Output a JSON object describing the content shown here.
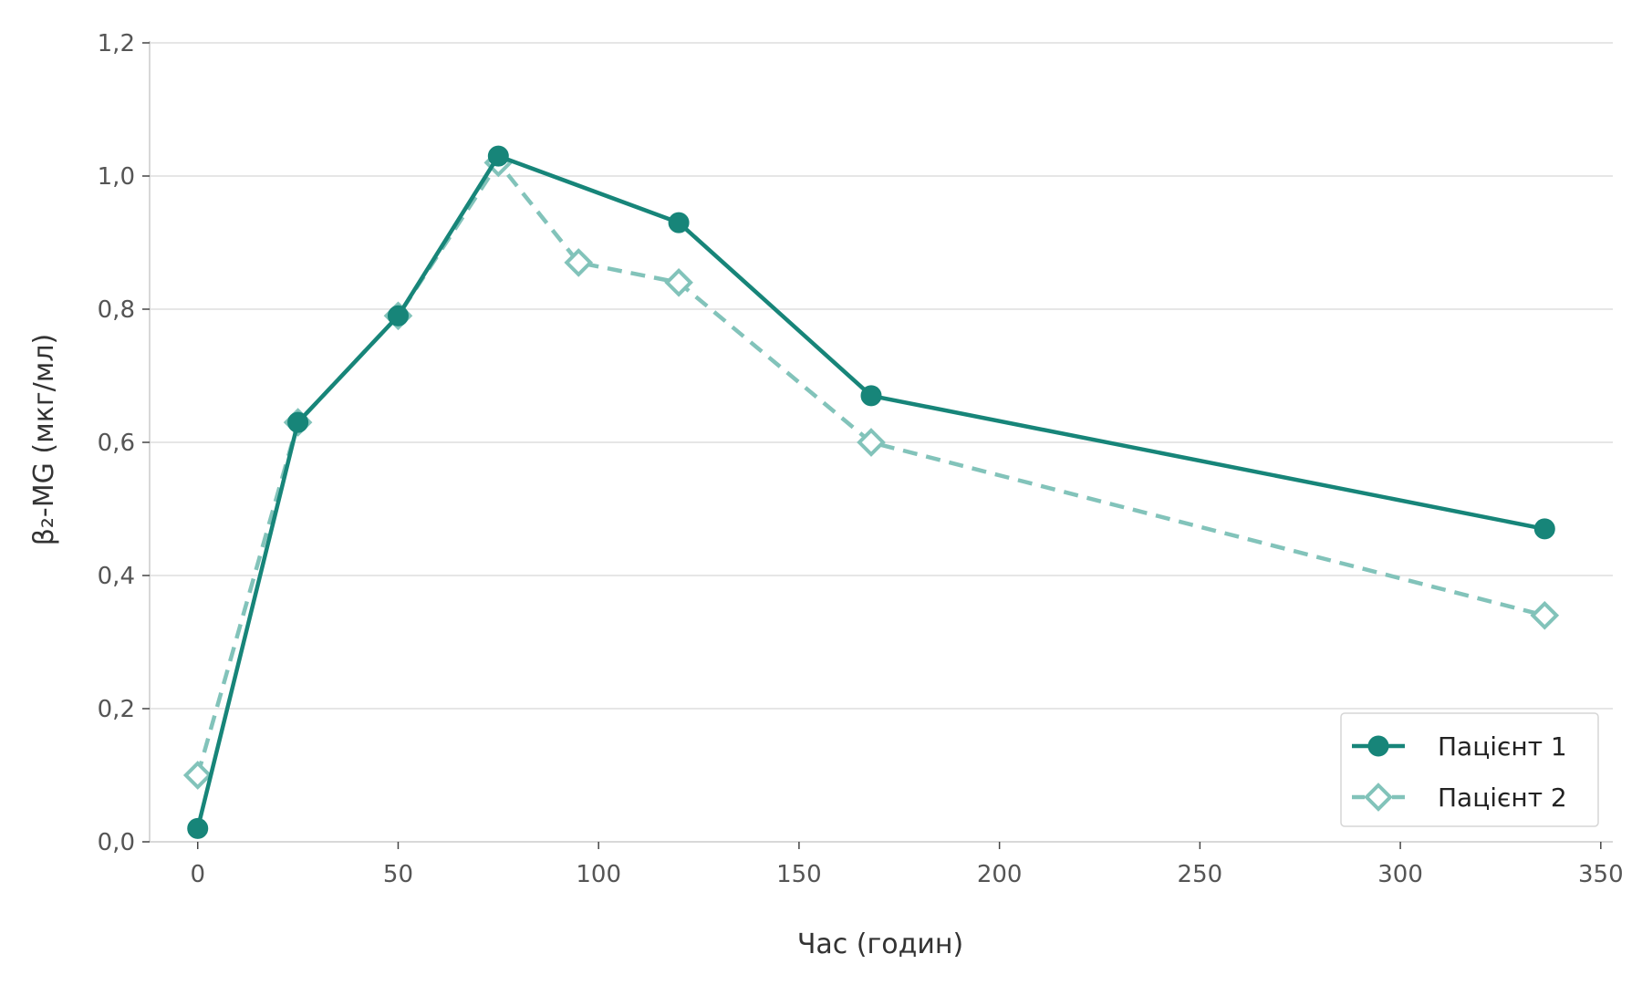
{
  "chart_data": {
    "type": "line",
    "title": "",
    "xlabel": "Час (годин)",
    "ylabel": "β₂-MG (мкг/мл)",
    "xlim": [
      -12,
      353
    ],
    "ylim": [
      0,
      1.2
    ],
    "x_ticks": [
      0,
      50,
      100,
      150,
      200,
      250,
      300,
      350
    ],
    "y_ticks": [
      0.0,
      0.2,
      0.4,
      0.6,
      0.8,
      1.0,
      1.2
    ],
    "x_tick_labels": [
      "0",
      "50",
      "100",
      "150",
      "200",
      "250",
      "300",
      "350"
    ],
    "y_tick_labels": [
      "0,0",
      "0,2",
      "0,4",
      "0,6",
      "0,8",
      "1,0",
      "1,2"
    ],
    "grid": "horizontal",
    "legend_position": "bottom-right",
    "series": [
      {
        "name": "Пацієнт 1",
        "color": "#178579",
        "line_style": "solid",
        "marker": "circle",
        "x": [
          0,
          25,
          50,
          75,
          120,
          168,
          336
        ],
        "y": [
          0.02,
          0.63,
          0.79,
          1.03,
          0.93,
          0.67,
          0.47
        ]
      },
      {
        "name": "Пацієнт 2",
        "color": "#82c3ba",
        "line_style": "dashed",
        "marker": "diamond-open",
        "x": [
          0,
          25,
          50,
          75,
          95,
          120,
          168,
          336
        ],
        "y": [
          0.1,
          0.63,
          0.79,
          1.02,
          0.87,
          0.84,
          0.6,
          0.34
        ]
      }
    ]
  }
}
